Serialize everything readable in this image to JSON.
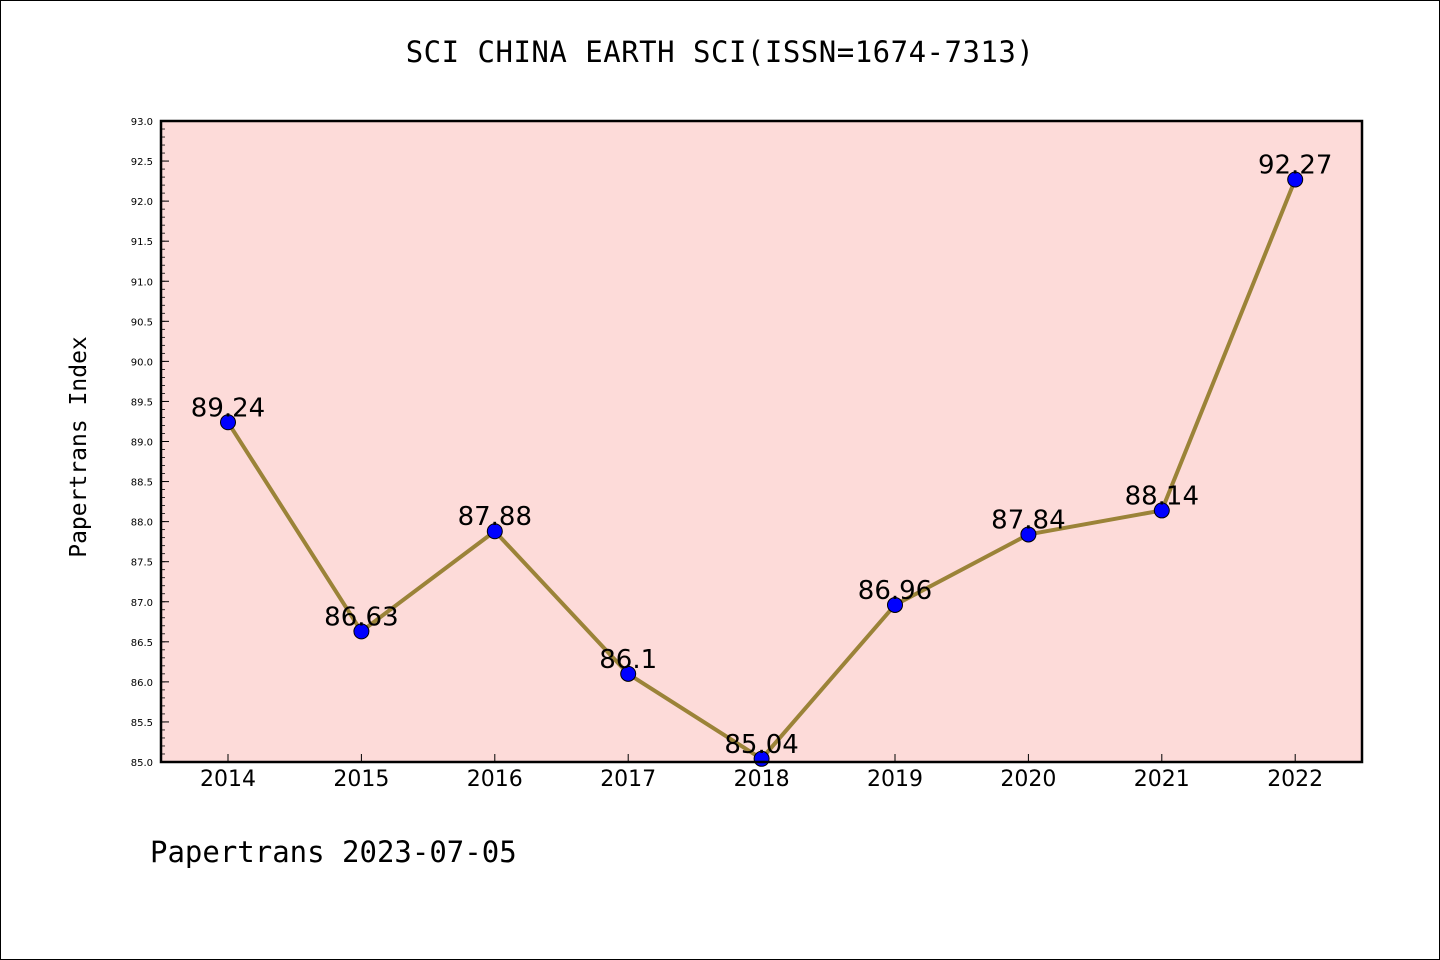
{
  "chart_data": {
    "type": "line",
    "title": "SCI CHINA EARTH SCI(ISSN=1674-7313)",
    "xlabel": "",
    "ylabel": "Papertrans Index",
    "categories": [
      "2014",
      "2015",
      "2016",
      "2017",
      "2018",
      "2019",
      "2020",
      "2021",
      "2022"
    ],
    "series": [
      {
        "values": [
          89.24,
          86.63,
          87.88,
          86.1,
          85.04,
          86.96,
          87.84,
          88.14,
          92.27
        ],
        "data_labels": [
          "89.24",
          "86.63",
          "87.88",
          "86.1",
          "85.04",
          "86.96",
          "87.84",
          "88.14",
          "92.27"
        ]
      }
    ],
    "ylim": [
      85.0,
      93.0
    ],
    "yticks": [
      "85.0",
      "85.5",
      "86.0",
      "86.5",
      "87.0",
      "87.5",
      "88.0",
      "88.5",
      "89.0",
      "89.5",
      "90.0",
      "90.5",
      "91.0",
      "91.5",
      "92.0",
      "92.5",
      "93.0"
    ],
    "grid": false,
    "colors": {
      "plot_background": "#fddbd9",
      "line": "#9b8338",
      "marker": "#0000ff"
    }
  },
  "footer": "Papertrans 2023-07-05"
}
